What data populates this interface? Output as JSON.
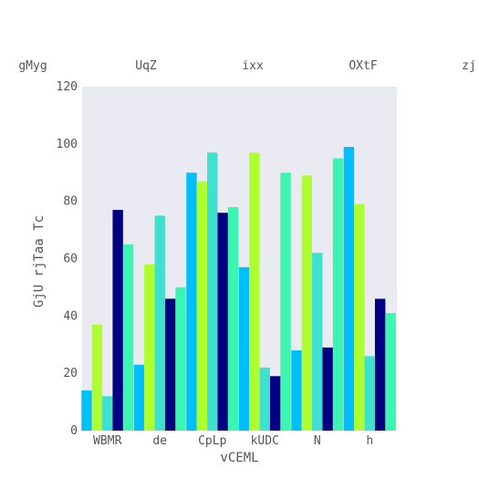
{
  "chart_data": {
    "type": "bar",
    "title": "",
    "xlabel": "vCEML",
    "ylabel": "GjU rjTaa Tc",
    "categories": [
      "WBMR",
      "de",
      "CpLp",
      "kUDC",
      "N",
      "h"
    ],
    "ylim": [
      0,
      120
    ],
    "yticks": [
      0,
      20,
      40,
      60,
      80,
      100,
      120
    ],
    "grid": false,
    "legend_position": "top",
    "series": [
      {
        "name": "gMyg",
        "color": "#00bfff",
        "values": [
          14,
          23,
          90,
          57,
          28,
          99
        ]
      },
      {
        "name": "UqZ",
        "color": "#adff2f",
        "values": [
          37,
          58,
          87,
          97,
          89,
          79
        ]
      },
      {
        "name": "ixx",
        "color": "#40e0d0",
        "values": [
          12,
          75,
          97,
          22,
          62,
          26
        ]
      },
      {
        "name": "OXtF",
        "color": "#000080",
        "values": [
          77,
          46,
          76,
          19,
          29,
          46
        ]
      },
      {
        "name": "zj",
        "color": "#3cf5b0",
        "values": [
          65,
          50,
          78,
          90,
          95,
          41
        ]
      }
    ],
    "plot_background": "#eaeaf2"
  }
}
